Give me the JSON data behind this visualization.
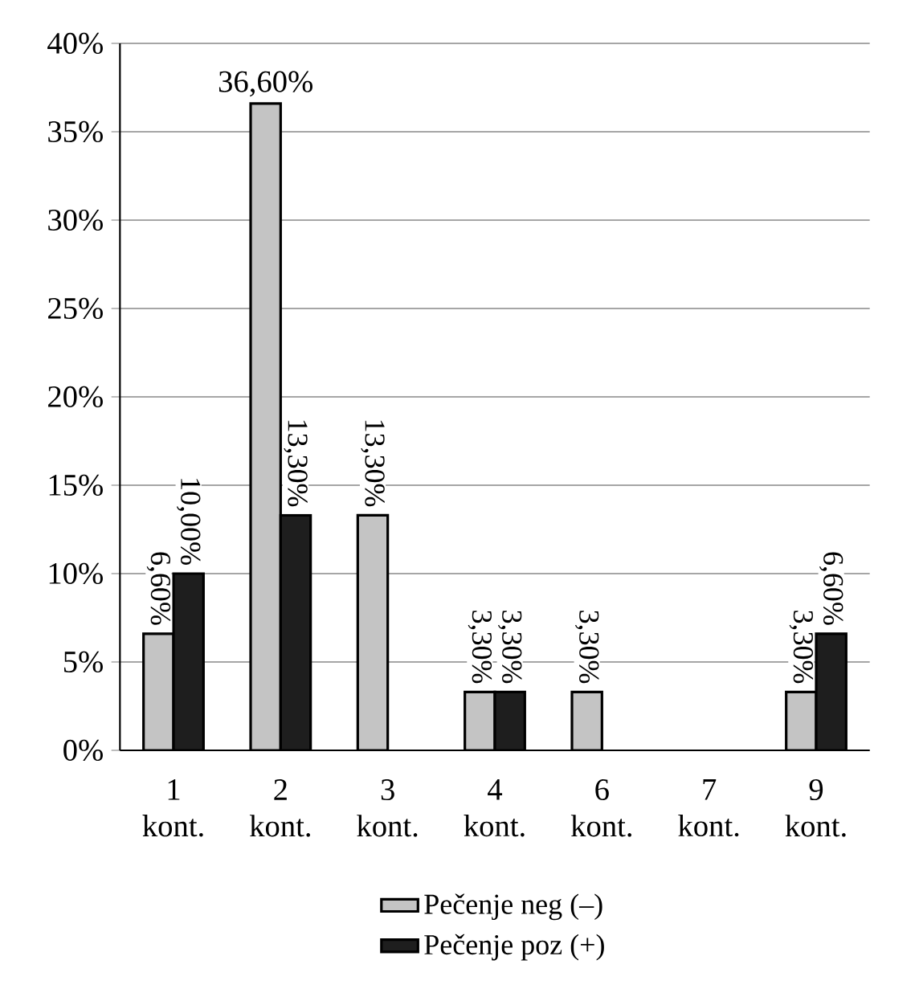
{
  "chart_data": {
    "type": "bar",
    "categories": [
      "1 kont.",
      "2 kont.",
      "3 kont.",
      "4 kont.",
      "6 kont.",
      "7 kont.",
      "9 kont."
    ],
    "series": [
      {
        "name": "Pečenje neg (–)",
        "color": "#c4c4c4",
        "values": [
          6.6,
          36.6,
          13.3,
          3.3,
          3.3,
          null,
          3.3
        ],
        "value_labels": [
          "6,60%",
          "36,60%",
          "13,30%",
          "3,30%",
          "3,30%",
          null,
          "3,30%"
        ]
      },
      {
        "name": "Pečenje poz (+)",
        "color": "#1e1e1e",
        "values": [
          10.0,
          13.3,
          null,
          3.3,
          null,
          null,
          6.6
        ],
        "value_labels": [
          "10,00%",
          "13,30%",
          null,
          "3,30%",
          null,
          null,
          "6,60%"
        ]
      }
    ],
    "ylim": [
      0,
      40
    ],
    "yticks": [
      {
        "value": 0,
        "label": "0%"
      },
      {
        "value": 5,
        "label": "5%"
      },
      {
        "value": 10,
        "label": "10%"
      },
      {
        "value": 15,
        "label": "15%"
      },
      {
        "value": 20,
        "label": "20%"
      },
      {
        "value": 25,
        "label": "25%"
      },
      {
        "value": 30,
        "label": "30%"
      },
      {
        "value": 35,
        "label": "35%"
      },
      {
        "value": 40,
        "label": "40%"
      }
    ],
    "grid": "y",
    "legend": "bottom"
  }
}
